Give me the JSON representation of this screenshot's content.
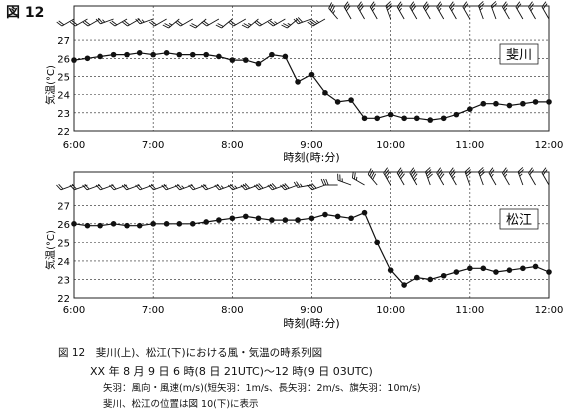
{
  "figure": {
    "label": "図 12",
    "caption_title": "図 12　斐川(上)、松江(下)における風・気温の時系列図",
    "caption_period": "XX 年 8 月 9 日 6 時(8 日 21UTC)〜12 時(9 日 03UTC)",
    "caption_legend": "矢羽：風向・風速(m/s)(短矢羽：1m/s、長矢羽：2m/s、旗矢羽：10m/s)",
    "caption_note": "斐川、松江の位置は図 10(下)に表示"
  },
  "chart_data": [
    {
      "type": "line",
      "station": "斐川",
      "xlabel": "時刻(時:分)",
      "ylabel": "気温(°C)",
      "xticks": [
        "6:00",
        "7:00",
        "8:00",
        "9:00",
        "10:00",
        "11:00",
        "12:00"
      ],
      "xlim": [
        6.0,
        12.0
      ],
      "ylim": [
        22,
        27.5
      ],
      "yticks": [
        22,
        23,
        24,
        25,
        26,
        27
      ],
      "grid": true,
      "series": [
        {
          "marker": "filled-circle",
          "x": [
            6.0,
            6.17,
            6.33,
            6.5,
            6.67,
            6.83,
            7.0,
            7.17,
            7.33,
            7.5,
            7.67,
            7.83,
            8.0,
            8.17,
            8.33,
            8.5,
            8.67,
            8.83,
            9.0,
            9.17,
            9.33,
            9.5,
            9.67,
            9.83,
            10.0,
            10.17,
            10.33,
            10.5,
            10.67,
            10.83,
            11.0,
            11.17,
            11.33,
            11.5,
            11.67,
            11.83,
            12.0
          ],
          "y": [
            25.9,
            26.0,
            26.1,
            26.2,
            26.2,
            26.3,
            26.2,
            26.3,
            26.2,
            26.2,
            26.2,
            26.1,
            25.9,
            25.9,
            25.7,
            26.2,
            26.1,
            24.7,
            25.1,
            24.1,
            23.6,
            23.7,
            22.7,
            22.7,
            22.9,
            22.7,
            22.7,
            22.6,
            22.7,
            22.9,
            23.2,
            23.5,
            23.5,
            23.4,
            23.5,
            23.6,
            23.6
          ]
        }
      ],
      "wind": {
        "note": "wind barbs every 10 min (direction/speed, m/s)",
        "dir": [
          240,
          240,
          240,
          250,
          240,
          240,
          250,
          240,
          230,
          240,
          230,
          240,
          230,
          240,
          230,
          240,
          240,
          230,
          250,
          240,
          320,
          330,
          330,
          330,
          340,
          330,
          330,
          330,
          330,
          330,
          330,
          340,
          340,
          330,
          330,
          330,
          330
        ],
        "speed": [
          4,
          4,
          4,
          5,
          4,
          4,
          5,
          4,
          5,
          4,
          4,
          4,
          4,
          4,
          5,
          4,
          5,
          5,
          6,
          7,
          7,
          6,
          6,
          5,
          6,
          5,
          6,
          6,
          5,
          5,
          4,
          5,
          4,
          5,
          4,
          5,
          4
        ]
      }
    },
    {
      "type": "line",
      "station": "松江",
      "xlabel": "時刻(時:分)",
      "ylabel": "気温(°C)",
      "xticks": [
        "6:00",
        "7:00",
        "8:00",
        "9:00",
        "10:00",
        "11:00",
        "12:00"
      ],
      "xlim": [
        6.0,
        12.0
      ],
      "ylim": [
        22,
        27.5
      ],
      "yticks": [
        22,
        23,
        24,
        25,
        26,
        27
      ],
      "grid": true,
      "series": [
        {
          "marker": "filled-circle",
          "x": [
            6.0,
            6.17,
            6.33,
            6.5,
            6.67,
            6.83,
            7.0,
            7.17,
            7.33,
            7.5,
            7.67,
            7.83,
            8.0,
            8.17,
            8.33,
            8.5,
            8.67,
            8.83,
            9.0,
            9.17,
            9.33,
            9.5,
            9.67,
            9.83,
            10.0,
            10.17,
            10.33,
            10.5,
            10.67,
            10.83,
            11.0,
            11.17,
            11.33,
            11.5,
            11.67,
            11.83,
            12.0
          ],
          "y": [
            26.0,
            25.9,
            25.9,
            26.0,
            25.9,
            25.9,
            26.0,
            26.0,
            26.0,
            26.0,
            26.1,
            26.2,
            26.3,
            26.4,
            26.3,
            26.2,
            26.2,
            26.2,
            26.3,
            26.5,
            26.4,
            26.3,
            26.6,
            25.0,
            23.5,
            22.7,
            23.1,
            23.0,
            23.2,
            23.4,
            23.6,
            23.6,
            23.4,
            23.5,
            23.6,
            23.7,
            23.4
          ]
        }
      ],
      "wind": {
        "note": "wind barbs every 10 min (direction/speed, m/s)",
        "dir": [
          250,
          250,
          250,
          250,
          250,
          250,
          250,
          250,
          250,
          250,
          250,
          250,
          250,
          250,
          250,
          250,
          250,
          250,
          260,
          250,
          270,
          290,
          300,
          320,
          330,
          330,
          330,
          340,
          330,
          330,
          340,
          340,
          330,
          330,
          340,
          330,
          330
        ],
        "speed": [
          4,
          4,
          4,
          4,
          4,
          4,
          4,
          4,
          4,
          5,
          4,
          4,
          5,
          5,
          6,
          6,
          6,
          6,
          5,
          6,
          6,
          5,
          5,
          8,
          7,
          8,
          9,
          8,
          8,
          7,
          6,
          6,
          5,
          5,
          5,
          4,
          4
        ]
      }
    }
  ]
}
